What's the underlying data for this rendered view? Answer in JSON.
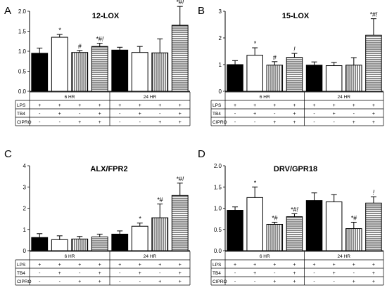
{
  "colors": {
    "fill_black": "#000000",
    "fill_white": "#ffffff",
    "stroke": "#000000",
    "hatch_bg": "#ffffff"
  },
  "chart_data": [
    {
      "type": "bar",
      "panel_letter": "A",
      "title": "12-LOX",
      "ylim": [
        0,
        2.0
      ],
      "yticks": [
        "0.0",
        "0.5",
        "1.0",
        "1.5",
        "2.0"
      ],
      "tick_values": [
        0,
        0.5,
        1.0,
        1.5,
        2.0
      ],
      "fills": [
        "black",
        "white",
        "vstripe",
        "hstripe",
        "black",
        "white",
        "vstripe",
        "hstripe"
      ],
      "values": [
        0.95,
        1.35,
        0.97,
        1.12,
        1.03,
        0.97,
        0.96,
        1.65
      ],
      "errors": [
        0.13,
        0.07,
        0.05,
        0.08,
        0.07,
        0.15,
        0.35,
        0.47
      ],
      "annotations": [
        "",
        "*",
        "#",
        "*#!",
        "",
        "",
        "",
        "*#!"
      ],
      "time_labels": [
        "6 HR",
        "24 HR"
      ],
      "row_labels": [
        "LPS",
        "TB4",
        "CIPRO"
      ],
      "rows": [
        [
          "+",
          "+",
          "+",
          "+",
          "+",
          "+",
          "+",
          "+"
        ],
        [
          "-",
          "+",
          "-",
          "+",
          "-",
          "+",
          "-",
          "+"
        ],
        [
          "-",
          "-",
          "+",
          "+",
          "-",
          "-",
          "+",
          "+"
        ]
      ]
    },
    {
      "type": "bar",
      "panel_letter": "B",
      "title": "15-LOX",
      "ylim": [
        0,
        3
      ],
      "yticks": [
        "0",
        "1",
        "2",
        "3"
      ],
      "tick_values": [
        0,
        1,
        2,
        3
      ],
      "fills": [
        "black",
        "white",
        "vstripe",
        "hstripe",
        "black",
        "white",
        "vstripe",
        "hstripe"
      ],
      "values": [
        1.0,
        1.35,
        0.98,
        1.27,
        0.98,
        0.96,
        0.98,
        2.1
      ],
      "errors": [
        0.15,
        0.28,
        0.13,
        0.15,
        0.12,
        0.12,
        0.28,
        0.62
      ],
      "annotations": [
        "",
        "*",
        "#",
        "!",
        "",
        "",
        "",
        "*#!"
      ],
      "time_labels": [
        "6 HR",
        "24 HR"
      ],
      "row_labels": [
        "LPS",
        "TB4",
        "CIPRO"
      ],
      "rows": [
        [
          "+",
          "+",
          "+",
          "+",
          "+",
          "+",
          "+",
          "+"
        ],
        [
          "-",
          "+",
          "-",
          "+",
          "-",
          "+",
          "-",
          "+"
        ],
        [
          "-",
          "-",
          "+",
          "+",
          "-",
          "-",
          "+",
          "+"
        ]
      ]
    },
    {
      "type": "bar",
      "panel_letter": "C",
      "title": "ALX/FPR2",
      "ylim": [
        0,
        4
      ],
      "yticks": [
        "0",
        "1",
        "2",
        "3",
        "4"
      ],
      "tick_values": [
        0,
        1,
        2,
        3,
        4
      ],
      "fills": [
        "black",
        "white",
        "vstripe",
        "hstripe",
        "black",
        "white",
        "vstripe",
        "hstripe"
      ],
      "values": [
        0.62,
        0.52,
        0.55,
        0.65,
        0.78,
        1.15,
        1.55,
        2.6
      ],
      "errors": [
        0.18,
        0.18,
        0.12,
        0.13,
        0.15,
        0.15,
        0.65,
        0.58
      ],
      "annotations": [
        "",
        "",
        "",
        "",
        "",
        "*",
        "*#",
        "*#!"
      ],
      "time_labels": [
        "6 HR",
        "24 HR"
      ],
      "row_labels": [
        "LPS",
        "TB4",
        "CIPRO"
      ],
      "rows": [
        [
          "+",
          "+",
          "+",
          "+",
          "+",
          "+",
          "+",
          "+"
        ],
        [
          "-",
          "+",
          "-",
          "+",
          "-",
          "+",
          "-",
          "+"
        ],
        [
          "-",
          "-",
          "+",
          "+",
          "-",
          "-",
          "+",
          "+"
        ]
      ]
    },
    {
      "type": "bar",
      "panel_letter": "D",
      "title": "DRV/GPR18",
      "ylim": [
        0,
        2.0
      ],
      "yticks": [
        "0.0",
        "0.5",
        "1.0",
        "1.5",
        "2.0"
      ],
      "tick_values": [
        0,
        0.5,
        1.0,
        1.5,
        2.0
      ],
      "fills": [
        "black",
        "white",
        "vstripe",
        "hstripe",
        "black",
        "white",
        "vstripe",
        "hstripe"
      ],
      "values": [
        0.95,
        1.25,
        0.62,
        0.8,
        1.18,
        1.15,
        0.52,
        1.12
      ],
      "errors": [
        0.08,
        0.25,
        0.05,
        0.07,
        0.18,
        0.17,
        0.15,
        0.15
      ],
      "annotations": [
        "",
        "*",
        "*#",
        "*#!",
        "",
        "",
        "*#",
        "!"
      ],
      "time_labels": [
        "6 HR",
        "24 HR"
      ],
      "row_labels": [
        "LPS",
        "TB4",
        "CIPRO"
      ],
      "rows": [
        [
          "+",
          "+",
          "+",
          "+",
          "+",
          "+",
          "+",
          "+"
        ],
        [
          "-",
          "+",
          "-",
          "+",
          "-",
          "+",
          "-",
          "+"
        ],
        [
          "-",
          "-",
          "+",
          "+",
          "-",
          "-",
          "+",
          "+"
        ]
      ]
    }
  ]
}
